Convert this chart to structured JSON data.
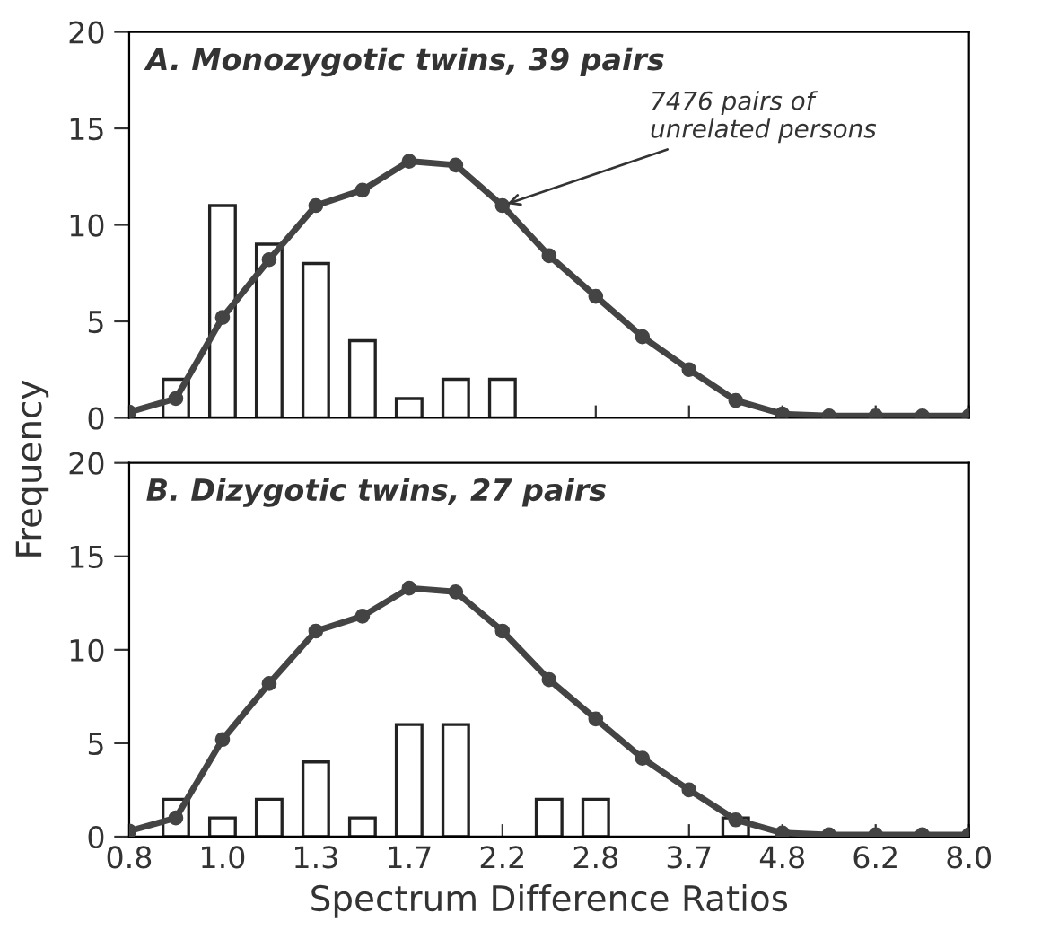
{
  "chart_data": [
    {
      "type": "bar",
      "title": "A. Monozygotic twins, 39 pairs",
      "ylabel": "Frequency",
      "annotations": [
        {
          "text": "7476 pairs of\nunrelated persons",
          "x": "2.2",
          "y": 11.0
        }
      ],
      "categories": [
        "0.8",
        null,
        "1.0",
        null,
        "1.3",
        null,
        "1.7",
        null,
        "2.2",
        null,
        "2.8",
        null,
        "3.7",
        null,
        "4.8",
        null,
        "6.2",
        null,
        "8.0"
      ],
      "series": [
        {
          "color": "#ffffff",
          "values": [
            null,
            2,
            11,
            9,
            8,
            4,
            1,
            2,
            2,
            null,
            null,
            null,
            null,
            null,
            null,
            null,
            null,
            null,
            null
          ]
        },
        {
          "type": "line",
          "color": "#444444",
          "marker": "circle",
          "line_style": "solid",
          "values": [
            0.3,
            1.0,
            5.2,
            8.2,
            11.0,
            11.8,
            13.3,
            13.1,
            11.0,
            8.4,
            6.3,
            4.2,
            2.5,
            0.9,
            0.2,
            0.1,
            0.1,
            0.1,
            0.1
          ]
        }
      ],
      "ylim": [
        0,
        20
      ],
      "yticks": [
        0,
        5,
        10,
        15,
        20
      ],
      "tick_labels": "y",
      "grid": false,
      "legend": false
    },
    {
      "type": "bar",
      "title": "B. Dizygotic twins, 27 pairs",
      "xlabel": "Spectrum Difference Ratios",
      "categories": [
        "0.8",
        null,
        "1.0",
        null,
        "1.3",
        null,
        "1.7",
        null,
        "2.2",
        null,
        "2.8",
        null,
        "3.7",
        null,
        "4.8",
        null,
        "6.2",
        null,
        "8.0"
      ],
      "series": [
        {
          "color": "#ffffff",
          "values": [
            null,
            2,
            1,
            2,
            4,
            1,
            6,
            6,
            null,
            2,
            2,
            null,
            null,
            1,
            null,
            null,
            null,
            null,
            null
          ]
        },
        {
          "type": "line",
          "color": "#444444",
          "marker": "circle",
          "line_style": "solid",
          "values": [
            0.3,
            1.0,
            5.2,
            8.2,
            11.0,
            11.8,
            13.3,
            13.1,
            11.0,
            8.4,
            6.3,
            4.2,
            2.5,
            0.9,
            0.2,
            0.1,
            0.1,
            0.1,
            0.1
          ]
        }
      ],
      "ylim": [
        0,
        20
      ],
      "yticks": [
        0,
        5,
        10,
        15,
        20
      ],
      "grid": false,
      "legend": false
    }
  ]
}
